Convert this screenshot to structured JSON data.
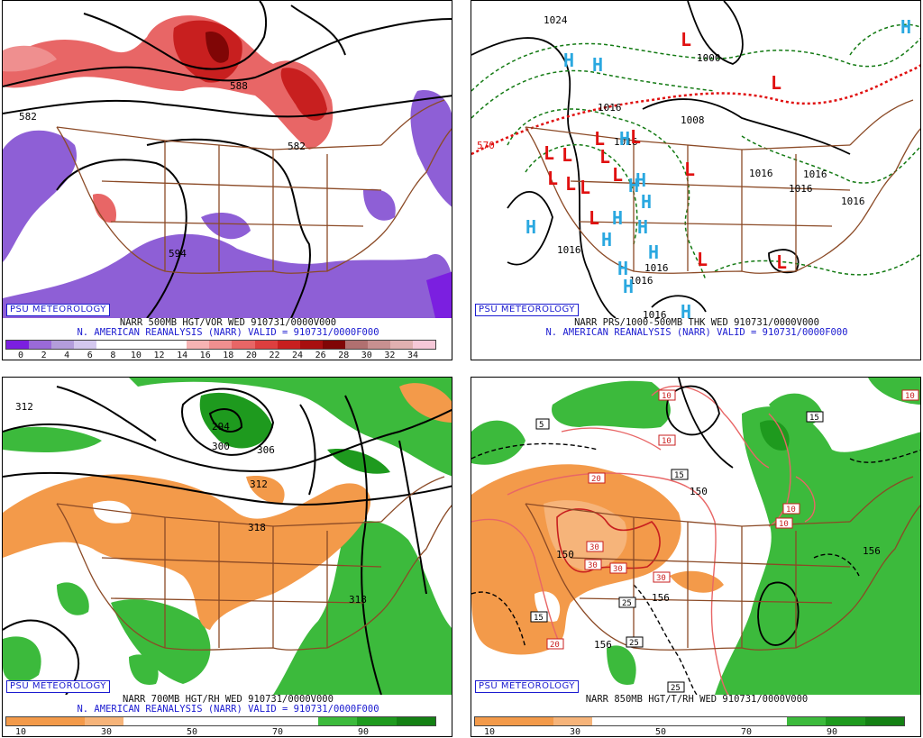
{
  "panels": [
    {
      "id": "500mb",
      "badge": "PSU METEOROLOGY",
      "line1": "NARR 500MB HGT/VOR WED 910731/0000V000",
      "line2": "N. AMERICAN REANALYSIS (NARR) VALID = 910731/0000F000",
      "scale_colors": [
        "#7b1fe0",
        "#9a6ad8",
        "#b39ddb",
        "#d4c8ee",
        "#ffffff",
        "#ffffff",
        "#ffffff",
        "#ffffff",
        "#f6b3b3",
        "#ef8f8f",
        "#e86666",
        "#dd3f3f",
        "#c81f1f",
        "#a80f0f",
        "#800606",
        "#b07070",
        "#c89090",
        "#e0b0b0",
        "#f6c8d8"
      ],
      "scale_ticks": [
        "0",
        "2",
        "4",
        "6",
        "8",
        "10",
        "12",
        "14",
        "16",
        "18",
        "20",
        "22",
        "24",
        "26",
        "28",
        "30",
        "32",
        "34"
      ],
      "contour_labels": [
        "582",
        "588",
        "582",
        "594"
      ]
    },
    {
      "id": "sfc",
      "badge": "PSU METEOROLOGY",
      "line1": "NARR PRS/1000-500MB THK WED 910731/0000V000",
      "line2": "N. AMERICAN REANALYSIS (NARR) VALID = 910731/0000F000",
      "contour_labels": [
        "1024",
        "1000",
        "1016",
        "1008",
        "1016",
        "1016",
        "1016",
        "1016",
        "1016",
        "1016",
        "1016",
        "1016",
        "1016",
        "570"
      ],
      "lows": 17,
      "highs": 16
    },
    {
      "id": "700mb",
      "badge": "PSU METEOROLOGY",
      "line1": "NARR 700MB HGT/RH WED 910731/0000V000",
      "line2": "N. AMERICAN REANALYSIS (NARR) VALID = 910731/0000F000",
      "scale_colors": [
        "#f39a4a",
        "#f39a4a",
        "#f6b47a",
        "#ffffff",
        "#ffffff",
        "#ffffff",
        "#ffffff",
        "#ffffff",
        "#3cba3c",
        "#1e9a1e",
        "#138013"
      ],
      "scale_ticks": [
        "10",
        "30",
        "50",
        "70",
        "90"
      ],
      "contour_labels": [
        "312",
        "294",
        "300",
        "306",
        "312",
        "318",
        "318"
      ]
    },
    {
      "id": "850mb",
      "badge": "PSU METEOROLOGY",
      "line1": "NARR 850MB HGT/T/RH WED 910731/0000V000",
      "scale_colors": [
        "#f39a4a",
        "#f39a4a",
        "#f6b47a",
        "#ffffff",
        "#ffffff",
        "#ffffff",
        "#ffffff",
        "#ffffff",
        "#3cba3c",
        "#1e9a1e",
        "#138013"
      ],
      "scale_ticks": [
        "10",
        "30",
        "50",
        "70",
        "90"
      ],
      "contour_labels": [
        "150",
        "156",
        "156",
        "156",
        "150"
      ],
      "temp_boxes": [
        "10",
        "10",
        "15",
        "10",
        "5",
        "20",
        "15",
        "10",
        "10",
        "30",
        "30",
        "30",
        "30",
        "25",
        "15",
        "20",
        "25",
        "25"
      ]
    }
  ]
}
